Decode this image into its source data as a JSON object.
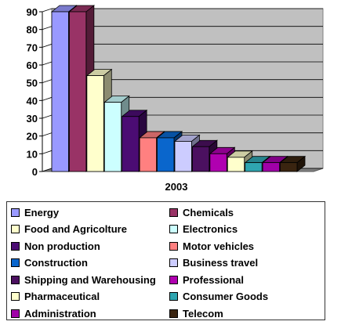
{
  "chart_data": {
    "type": "bar",
    "categories": [
      "2003"
    ],
    "ylim": [
      0,
      90
    ],
    "yticks": [
      0,
      10,
      20,
      30,
      40,
      50,
      60,
      70,
      80,
      90
    ],
    "grid": true,
    "legend_position": "bottom",
    "plot_background": "#c0c0c0",
    "series": [
      {
        "name": "Energy",
        "values": [
          90
        ],
        "color": "#9999ff"
      },
      {
        "name": "Chemicals",
        "values": [
          90
        ],
        "color": "#993366"
      },
      {
        "name": "Food and Agricolture",
        "values": [
          54
        ],
        "color": "#ffffcc"
      },
      {
        "name": "Electronics",
        "values": [
          39
        ],
        "color": "#ccffff"
      },
      {
        "name": "Non production",
        "values": [
          31
        ],
        "color": "#4b0c73"
      },
      {
        "name": "Motor vehicles",
        "values": [
          19
        ],
        "color": "#ff8080"
      },
      {
        "name": "Construction",
        "values": [
          19
        ],
        "color": "#0a66cc"
      },
      {
        "name": "Business travel",
        "values": [
          17
        ],
        "color": "#ccccff"
      },
      {
        "name": "Shipping and Warehousing",
        "values": [
          14
        ],
        "color": "#4b1060"
      },
      {
        "name": "Professional",
        "values": [
          10
        ],
        "color": "#b000b0"
      },
      {
        "name": "Pharmaceutical",
        "values": [
          8
        ],
        "color": "#ffffcc"
      },
      {
        "name": "Consumer Goods",
        "values": [
          5
        ],
        "color": "#2fa5b0"
      },
      {
        "name": "Administration",
        "values": [
          5
        ],
        "color": "#a000a8"
      },
      {
        "name": "Telecom",
        "values": [
          5
        ],
        "color": "#3a2410"
      }
    ]
  }
}
